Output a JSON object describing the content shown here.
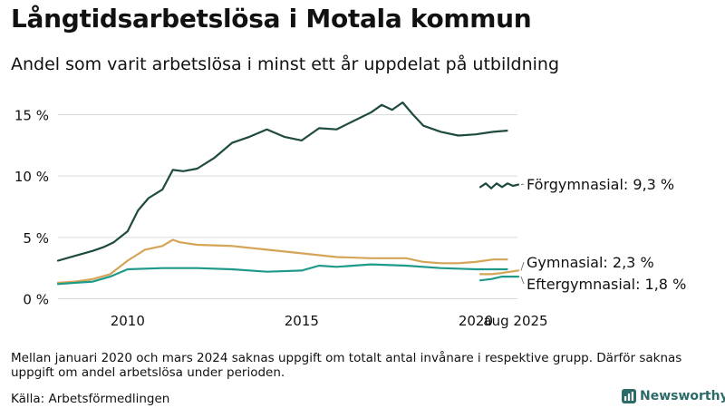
{
  "title": "Långtidsarbetslösa i Motala kommun",
  "subtitle": "Andel som varit arbetslösa i minst ett år uppdelat på utbildning",
  "note": "Mellan januari 2020 och mars 2024 saknas uppgift om totalt antal invånare i respektive grupp. Därför saknas uppgift om andel arbetslösa under perioden.",
  "source": "Källa: Arbetsförmedlingen",
  "brand": "Newsworthy",
  "colors": {
    "forgymnasial": "#1e4a40",
    "gymnasial": "#d4a457",
    "eftergymnasial": "#1f9a8a"
  },
  "chart_data": {
    "type": "line",
    "y_unit": "%",
    "ylim": [
      0,
      16.5
    ],
    "y_ticks": [
      0,
      5,
      10,
      15
    ],
    "y_tick_labels": [
      "0 %",
      "5 %",
      "10 %",
      "15 %"
    ],
    "x_ticks": [
      2010,
      2015,
      2020
    ],
    "x_tick_labels": [
      "2010",
      "2015",
      "2020"
    ],
    "latest_label": "aug 2025",
    "grid": true,
    "series": [
      {
        "key": "forgymnasial",
        "name": "Förgymnasial",
        "end_label": "Förgymnasial: 9,3 %",
        "main_x": [
          2008.0,
          2008.5,
          2009.0,
          2009.3,
          2009.6,
          2010.0,
          2010.3,
          2010.6,
          2011.0,
          2011.3,
          2011.6,
          2012.0,
          2012.5,
          2013.0,
          2013.5,
          2014.0,
          2014.5,
          2015.0,
          2015.5,
          2016.0,
          2016.5,
          2017.0,
          2017.3,
          2017.6,
          2017.9,
          2018.2,
          2018.5,
          2019.0,
          2019.5,
          2020.0,
          2020.5,
          2020.9
        ],
        "main_y": [
          3.1,
          3.5,
          3.9,
          4.2,
          4.6,
          5.5,
          7.2,
          8.2,
          8.9,
          10.5,
          10.4,
          10.6,
          11.5,
          12.7,
          13.2,
          13.8,
          13.2,
          12.9,
          13.9,
          13.8,
          14.5,
          15.2,
          15.8,
          15.4,
          16.0,
          15.0,
          14.1,
          13.6,
          13.3,
          13.4,
          13.6,
          13.7
        ],
        "recent_x": [
          2024.2,
          2024.4,
          2024.6,
          2024.8,
          2025.0,
          2025.2,
          2025.4,
          2025.6
        ],
        "recent_y": [
          9.1,
          9.4,
          9.0,
          9.4,
          9.1,
          9.4,
          9.2,
          9.3
        ]
      },
      {
        "key": "gymnasial",
        "name": "Gymnasial",
        "end_label": "Gymnasial: 2,3 %",
        "main_x": [
          2008.0,
          2008.5,
          2009.0,
          2009.5,
          2010.0,
          2010.5,
          2011.0,
          2011.3,
          2011.5,
          2012.0,
          2013.0,
          2014.0,
          2015.0,
          2016.0,
          2017.0,
          2018.0,
          2018.5,
          2019.0,
          2019.5,
          2020.0,
          2020.5,
          2020.9
        ],
        "main_y": [
          1.3,
          1.4,
          1.6,
          2.0,
          3.1,
          4.0,
          4.3,
          4.8,
          4.6,
          4.4,
          4.3,
          4.0,
          3.7,
          3.4,
          3.3,
          3.3,
          3.0,
          2.9,
          2.9,
          3.0,
          3.2,
          3.2
        ],
        "recent_x": [
          2024.2,
          2024.6,
          2025.0,
          2025.3,
          2025.6
        ],
        "recent_y": [
          2.0,
          2.0,
          2.1,
          2.2,
          2.3
        ]
      },
      {
        "key": "eftergymnasial",
        "name": "Eftergymnasial",
        "end_label": "Eftergymnasial: 1,8 %",
        "main_x": [
          2008.0,
          2008.5,
          2009.0,
          2009.5,
          2010.0,
          2011.0,
          2012.0,
          2013.0,
          2014.0,
          2015.0,
          2015.5,
          2016.0,
          2017.0,
          2018.0,
          2019.0,
          2020.0,
          2020.5,
          2020.9
        ],
        "main_y": [
          1.2,
          1.3,
          1.4,
          1.8,
          2.4,
          2.5,
          2.5,
          2.4,
          2.2,
          2.3,
          2.7,
          2.6,
          2.8,
          2.7,
          2.5,
          2.4,
          2.4,
          2.4
        ],
        "recent_x": [
          2024.2,
          2024.6,
          2025.0,
          2025.3,
          2025.6
        ],
        "recent_y": [
          1.5,
          1.6,
          1.8,
          1.8,
          1.8
        ]
      }
    ]
  }
}
